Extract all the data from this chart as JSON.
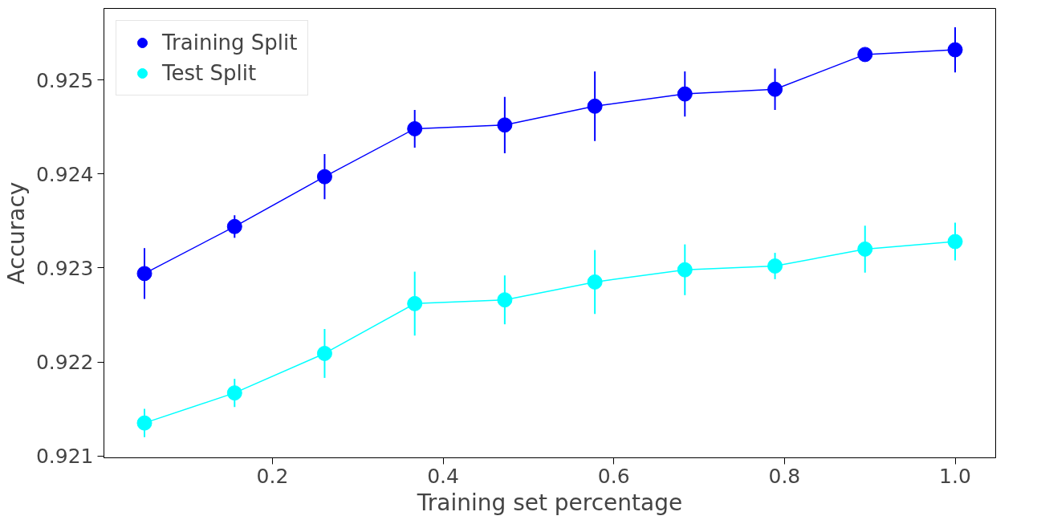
{
  "chart_data": {
    "type": "line",
    "xlabel": "Training set percentage",
    "ylabel": "Accuracy",
    "x": [
      0.05,
      0.1556,
      0.2611,
      0.3667,
      0.4722,
      0.5778,
      0.6833,
      0.7889,
      0.8944,
      1.0
    ],
    "series": [
      {
        "name": "Training Split",
        "color": "#0000ff",
        "values": [
          0.92294,
          0.92344,
          0.92397,
          0.92448,
          0.92452,
          0.92472,
          0.92485,
          0.9249,
          0.92527,
          0.92532
        ],
        "errors": [
          0.00027,
          0.00012,
          0.00024,
          0.0002,
          0.0003,
          0.00037,
          0.00024,
          0.00022,
          5e-05,
          0.00024
        ]
      },
      {
        "name": "Test Split",
        "color": "#00ffff",
        "values": [
          0.92135,
          0.92167,
          0.92209,
          0.92262,
          0.92266,
          0.92285,
          0.92298,
          0.92302,
          0.9232,
          0.92328
        ],
        "errors": [
          0.00015,
          0.00015,
          0.00026,
          0.00034,
          0.00026,
          0.00034,
          0.00027,
          0.00014,
          0.00025,
          0.0002
        ]
      }
    ],
    "xlim": [
      0.0025,
      1.0475
    ],
    "ylim": [
      0.92098,
      0.92576
    ],
    "xticks": [
      0.2,
      0.4,
      0.6,
      0.8,
      {
        "value": 1.0,
        "label": "1.0"
      }
    ],
    "yticks": [
      0.921,
      0.922,
      0.923,
      0.924,
      0.925
    ],
    "marker": "circle",
    "line_style": "solid",
    "legend": "top left",
    "grid": false
  }
}
